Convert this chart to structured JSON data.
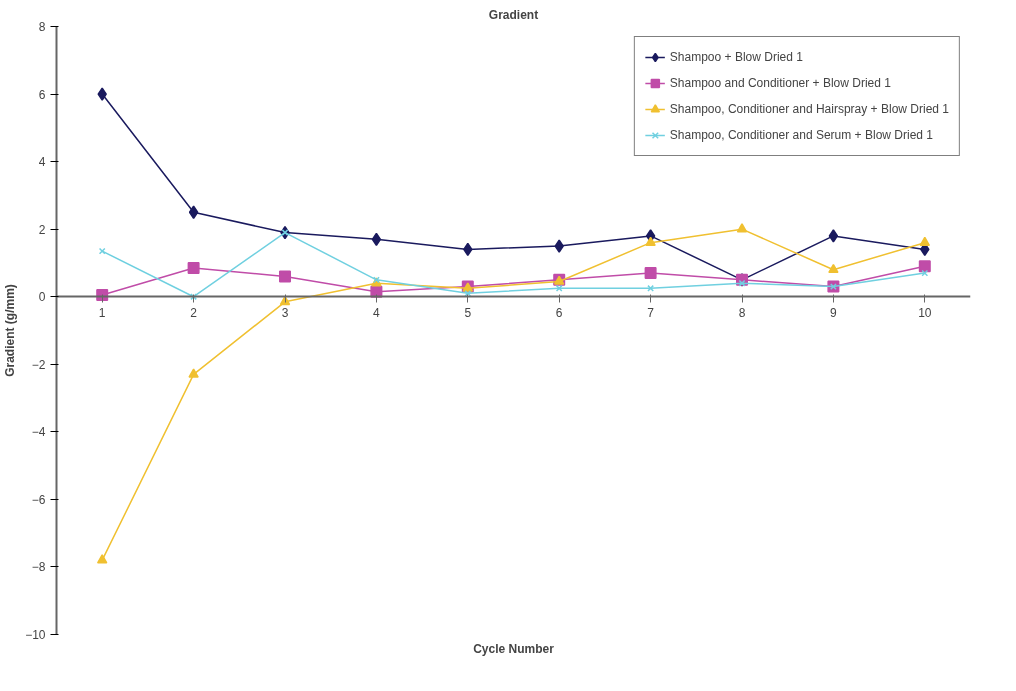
{
  "chart_data": {
    "type": "line",
    "title": "Gradient",
    "xlabel": "Cycle Number",
    "ylabel": "Gradient (g/mm)",
    "categories": [
      "1",
      "2",
      "3",
      "4",
      "5",
      "6",
      "7",
      "8",
      "9",
      "10"
    ],
    "series": [
      {
        "name": "Shampoo + Blow Dried 1",
        "color": "#1a1a5e",
        "marker": "diamond",
        "values": [
          6.0,
          2.5,
          1.9,
          1.7,
          1.4,
          1.5,
          1.8,
          0.5,
          1.8,
          1.4
        ]
      },
      {
        "name": "Shampoo and Conditioner + Blow Dried 1",
        "color": "#c04ca8",
        "marker": "square",
        "values": [
          0.05,
          0.85,
          0.6,
          0.15,
          0.3,
          0.5,
          0.7,
          0.5,
          0.3,
          0.9
        ]
      },
      {
        "name": "Shampoo, Conditioner and Hairspray + Blow Dried 1",
        "color": "#f0c030",
        "marker": "triangle",
        "values": [
          -7.8,
          -2.3,
          -0.15,
          0.4,
          0.25,
          0.45,
          1.6,
          2.0,
          0.8,
          1.6
        ]
      },
      {
        "name": "Shampoo, Conditioner and Serum + Blow Dried 1",
        "color": "#70d0e0",
        "marker": "cross",
        "values": [
          1.35,
          0.0,
          1.9,
          0.5,
          0.1,
          0.25,
          0.25,
          0.4,
          0.3,
          0.7
        ]
      }
    ],
    "ylim": [
      -10,
      8
    ],
    "yticks": [
      -10,
      -8,
      -6,
      -4,
      -2,
      0,
      2,
      4,
      6,
      8
    ],
    "grid": false,
    "legend": "top right",
    "line_style": "solid"
  }
}
